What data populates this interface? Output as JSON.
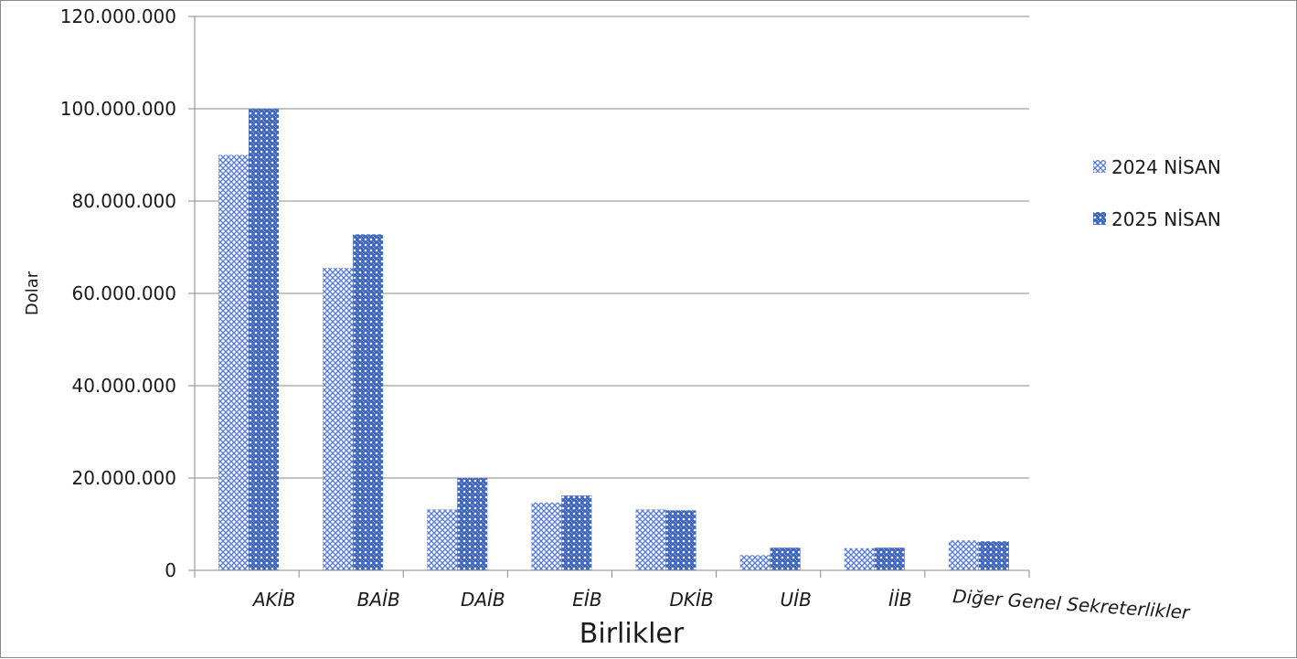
{
  "chart_data": {
    "type": "bar",
    "title": "",
    "xlabel": "Birlikler",
    "ylabel": "Dolar",
    "ylim": [
      0,
      120000000
    ],
    "yticks": [
      0,
      20000000,
      40000000,
      60000000,
      80000000,
      100000000,
      120000000
    ],
    "ytick_labels": [
      "0",
      "20.000.000",
      "40.000.000",
      "60.000.000",
      "80.000.000",
      "100.000.000",
      "120.000.000"
    ],
    "grid": true,
    "legend_position": "right",
    "categories": [
      "AKİB",
      "BAİB",
      "DAİB",
      "EİB",
      "DKİB",
      "UİB",
      "İİB",
      "Diğer Genel Sekreterlikler"
    ],
    "series": [
      {
        "name": "2024 NİSAN",
        "color": "#5b7fd4",
        "values": [
          90000000,
          65500000,
          13200000,
          14700000,
          13200000,
          3300000,
          4800000,
          6500000
        ]
      },
      {
        "name": "2025 NİSAN",
        "color": "#4a6fc4",
        "values": [
          100000000,
          72800000,
          20000000,
          16200000,
          13000000,
          4900000,
          4900000,
          6300000
        ]
      }
    ]
  }
}
